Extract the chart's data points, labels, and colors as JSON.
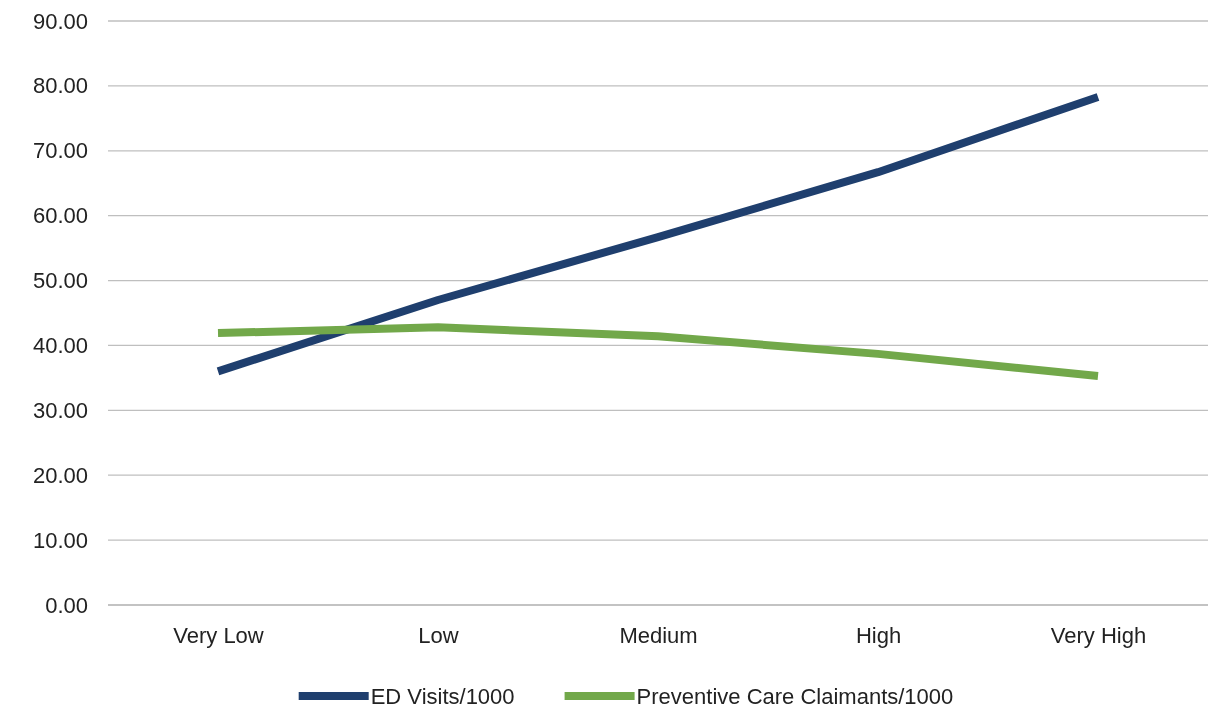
{
  "chart_data": {
    "type": "line",
    "categories": [
      "Very Low",
      "Low",
      "Medium",
      "High",
      "Very High"
    ],
    "series": [
      {
        "name": "ED Visits/1000",
        "color": "#1f3f6e",
        "values": [
          36.0,
          47.0,
          56.7,
          66.7,
          78.3
        ]
      },
      {
        "name": "Preventive Care Claimants/1000",
        "color": "#72a84a",
        "values": [
          41.9,
          42.8,
          41.4,
          38.7,
          35.3
        ]
      }
    ],
    "ylim": [
      0,
      90
    ],
    "yticks": [
      {
        "value": 0,
        "label": "0.00"
      },
      {
        "value": 10,
        "label": "10.00"
      },
      {
        "value": 20,
        "label": "20.00"
      },
      {
        "value": 30,
        "label": "30.00"
      },
      {
        "value": 40,
        "label": "40.00"
      },
      {
        "value": 50,
        "label": "50.00"
      },
      {
        "value": 60,
        "label": "60.00"
      },
      {
        "value": 70,
        "label": "70.00"
      },
      {
        "value": 80,
        "label": "80.00"
      },
      {
        "value": 90,
        "label": "90.00"
      }
    ],
    "grid": "y",
    "legend": "bottom",
    "marker": "none",
    "line_style": "solid"
  }
}
